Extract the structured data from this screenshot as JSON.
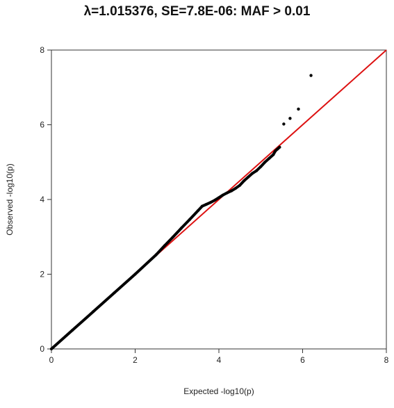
{
  "chart_data": {
    "type": "scatter",
    "title": "λ=1.015376, SE=7.8E-06: MAF > 0.01",
    "xlabel": "Expected -log10(p)",
    "ylabel": "Observed -log10(p)",
    "xlim": [
      0,
      8
    ],
    "ylim": [
      0,
      8
    ],
    "xticks": [
      "0",
      "2",
      "4",
      "6",
      "8"
    ],
    "yticks": [
      "0",
      "2",
      "4",
      "6",
      "8"
    ],
    "grid": false,
    "reference_line": {
      "x": [
        0,
        8
      ],
      "y": [
        0,
        8
      ],
      "color": "#dd1111"
    },
    "point_color": "#000000",
    "series": [
      {
        "x": [
          0.0,
          0.5,
          1.0,
          1.5,
          2.0,
          2.5,
          2.7,
          2.9,
          3.1,
          3.3,
          3.5,
          3.6,
          3.7,
          3.8,
          3.9,
          4.0,
          4.1,
          4.2,
          4.3,
          4.4,
          4.5,
          4.6,
          4.7,
          4.8,
          4.9,
          5.0,
          5.1,
          5.2,
          5.3,
          5.35,
          5.4,
          5.45,
          5.55,
          5.7,
          5.9,
          6.2
        ],
        "y": [
          0.0,
          0.5,
          1.0,
          1.5,
          2.0,
          2.52,
          2.76,
          2.99,
          3.23,
          3.46,
          3.7,
          3.82,
          3.87,
          3.92,
          3.98,
          4.05,
          4.12,
          4.18,
          4.23,
          4.3,
          4.38,
          4.5,
          4.6,
          4.7,
          4.77,
          4.88,
          5.0,
          5.1,
          5.2,
          5.3,
          5.35,
          5.4,
          6.02,
          6.17,
          6.42,
          7.32
        ]
      }
    ]
  }
}
